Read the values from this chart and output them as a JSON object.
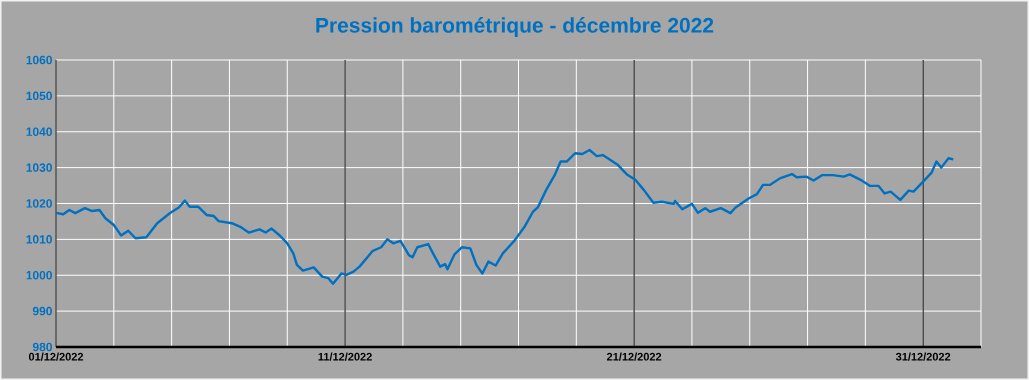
{
  "chart_data": {
    "type": "line",
    "title": "Pression barométrique - décembre 2022",
    "x": [
      "2022-12-01T00:00",
      "2022-12-01T06:00",
      "2022-12-01T11:00",
      "2022-12-01T16:00",
      "2022-12-02T00:00",
      "2022-12-02T06:00",
      "2022-12-02T12:00",
      "2022-12-02T17:00",
      "2022-12-03T00:00",
      "2022-12-03T06:00",
      "2022-12-03T12:00",
      "2022-12-03T18:00",
      "2022-12-04T03:00",
      "2022-12-04T12:00",
      "2022-12-04T23:00",
      "2022-12-05T06:00",
      "2022-12-05T11:00",
      "2022-12-05T15:00",
      "2022-12-05T22:00",
      "2022-12-06T05:00",
      "2022-12-06T11:00",
      "2022-12-06T15:00",
      "2022-12-07T02:00",
      "2022-12-07T09:00",
      "2022-12-07T16:00",
      "2022-12-08T01:00",
      "2022-12-08T06:00",
      "2022-12-08T11:00",
      "2022-12-08T18:00",
      "2022-12-09T00:00",
      "2022-12-09T05:00",
      "2022-12-09T08:00",
      "2022-12-09T13:00",
      "2022-12-09T22:00",
      "2022-12-10T05:00",
      "2022-12-10T10:00",
      "2022-12-10T14:00",
      "2022-12-10T21:00",
      "2022-12-11T01:00",
      "2022-12-11T07:00",
      "2022-12-11T12:00",
      "2022-12-11T23:00",
      "2022-12-12T06:00",
      "2022-12-12T11:00",
      "2022-12-12T16:00",
      "2022-12-12T22:00",
      "2022-12-13T05:00",
      "2022-12-13T08:00",
      "2022-12-13T12:00",
      "2022-12-13T21:00",
      "2022-12-14T01:00",
      "2022-12-14T07:00",
      "2022-12-14T11:00",
      "2022-12-14T13:00",
      "2022-12-14T19:00",
      "2022-12-15T01:00",
      "2022-12-15T08:00",
      "2022-12-15T13:00",
      "2022-12-15T18:00",
      "2022-12-15T23:00",
      "2022-12-16T05:00",
      "2022-12-16T11:00",
      "2022-12-16T21:00",
      "2022-12-17T05:00",
      "2022-12-17T12:00",
      "2022-12-17T16:00",
      "2022-12-17T23:00",
      "2022-12-18T06:00",
      "2022-12-18T11:00",
      "2022-12-18T16:00",
      "2022-12-18T23:00",
      "2022-12-19T05:00",
      "2022-12-19T11:00",
      "2022-12-19T17:00",
      "2022-12-19T22:00",
      "2022-12-20T10:00",
      "2022-12-20T18:00",
      "2022-12-21T01:00",
      "2022-12-21T08:00",
      "2022-12-21T16:00",
      "2022-12-21T23:00",
      "2022-12-22T09:00",
      "2022-12-22T10:00",
      "2022-12-22T16:00",
      "2022-12-23T00:00",
      "2022-12-23T05:00",
      "2022-12-23T11:00",
      "2022-12-23T15:00",
      "2022-12-24T00:00",
      "2022-12-24T08:00",
      "2022-12-24T12:00",
      "2022-12-24T23:00",
      "2022-12-25T06:00",
      "2022-12-25T11:00",
      "2022-12-25T17:00",
      "2022-12-26T01:00",
      "2022-12-26T11:00",
      "2022-12-26T15:00",
      "2022-12-26T23:00",
      "2022-12-27T05:00",
      "2022-12-27T12:00",
      "2022-12-27T21:00",
      "2022-12-28T06:00",
      "2022-12-28T11:00",
      "2022-12-28T20:00",
      "2022-12-29T04:00",
      "2022-12-29T11:00",
      "2022-12-29T16:00",
      "2022-12-29T21:00",
      "2022-12-30T05:00",
      "2022-12-30T12:00",
      "2022-12-30T16:00",
      "2022-12-31T00:00",
      "2022-12-31T07:00",
      "2022-12-31T11:00",
      "2022-12-31T15:00",
      "2022-12-31T21:00",
      "2023-01-01T01:00"
    ],
    "series": [
      {
        "color": "#0070c0",
        "values": [
          1017.4,
          1017.0,
          1018.2,
          1017.3,
          1018.7,
          1017.9,
          1018.2,
          1015.9,
          1014.0,
          1011.1,
          1012.4,
          1010.3,
          1010.6,
          1014.5,
          1017.4,
          1018.9,
          1020.8,
          1019.1,
          1019.1,
          1016.8,
          1016.5,
          1015.1,
          1014.5,
          1013.5,
          1011.9,
          1012.8,
          1011.9,
          1013.0,
          1011.0,
          1008.9,
          1006.1,
          1002.9,
          1001.3,
          1002.2,
          999.6,
          999.2,
          997.6,
          1000.5,
          1000.1,
          1001.0,
          1002.4,
          1006.8,
          1007.8,
          1010.0,
          1008.9,
          1009.6,
          1005.6,
          1005.0,
          1007.8,
          1008.7,
          1006.1,
          1002.4,
          1003.1,
          1001.7,
          1005.9,
          1007.8,
          1007.5,
          1002.9,
          1000.5,
          1003.8,
          1002.7,
          1006.1,
          1009.8,
          1013.5,
          1017.7,
          1018.9,
          1023.8,
          1027.9,
          1031.7,
          1031.7,
          1034.0,
          1033.8,
          1034.9,
          1033.2,
          1033.5,
          1030.9,
          1028.1,
          1026.6,
          1023.8,
          1020.2,
          1020.5,
          1019.9,
          1020.7,
          1018.4,
          1019.9,
          1017.4,
          1018.7,
          1017.7,
          1018.7,
          1017.3,
          1018.8,
          1021.4,
          1022.6,
          1025.2,
          1025.2,
          1027.0,
          1028.2,
          1027.3,
          1027.5,
          1026.4,
          1027.9,
          1027.9,
          1027.5,
          1028.1,
          1026.6,
          1024.9,
          1024.9,
          1022.8,
          1023.3,
          1021.0,
          1023.6,
          1023.3,
          1026.1,
          1028.6,
          1031.7,
          1030.0,
          1032.6,
          1032.3
        ]
      }
    ],
    "xlim": [
      "2022-12-01",
      "2023-01-02"
    ],
    "xticks": [
      {
        "value": "2022-12-01",
        "label": "01/12/2022"
      },
      {
        "value": "2022-12-03",
        "label": null
      },
      {
        "value": "2022-12-05",
        "label": null
      },
      {
        "value": "2022-12-07",
        "label": null
      },
      {
        "value": "2022-12-09",
        "label": null
      },
      {
        "value": "2022-12-11",
        "label": "11/12/2022"
      },
      {
        "value": "2022-12-13",
        "label": null
      },
      {
        "value": "2022-12-15",
        "label": null
      },
      {
        "value": "2022-12-17",
        "label": null
      },
      {
        "value": "2022-12-19",
        "label": null
      },
      {
        "value": "2022-12-21",
        "label": "21/12/2022"
      },
      {
        "value": "2022-12-23",
        "label": null
      },
      {
        "value": "2022-12-25",
        "label": null
      },
      {
        "value": "2022-12-27",
        "label": null
      },
      {
        "value": "2022-12-29",
        "label": null
      },
      {
        "value": "2022-12-31",
        "label": "31/12/2022"
      },
      {
        "value": "2023-01-02",
        "label": null
      }
    ],
    "ylim": [
      980,
      1060
    ],
    "yticks": [
      980,
      990,
      1000,
      1010,
      1020,
      1030,
      1040,
      1050,
      1060
    ],
    "grid": true,
    "marker": "none",
    "line_style": "solid"
  }
}
